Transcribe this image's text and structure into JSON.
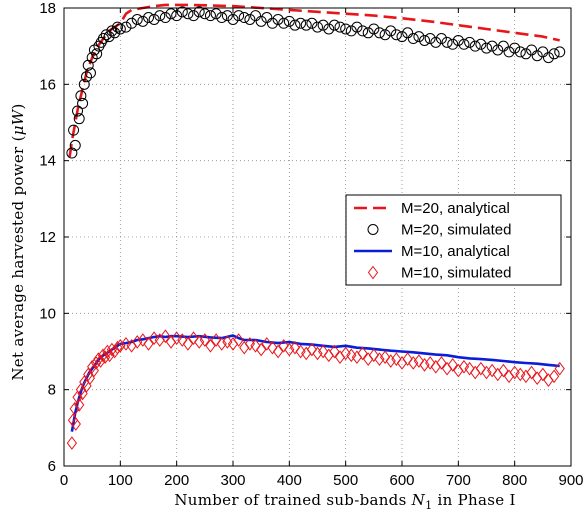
{
  "chart_data": {
    "type": "line",
    "xlabel": "Number of trained sub-bands N₁ in Phase I",
    "ylabel": "Net average harvested power (μW)",
    "xlim": [
      0,
      900
    ],
    "ylim": [
      6,
      18
    ],
    "xticks": [
      0,
      100,
      200,
      300,
      400,
      500,
      600,
      700,
      800,
      900
    ],
    "yticks": [
      6,
      8,
      10,
      12,
      14,
      16,
      18
    ],
    "grid": true,
    "legend_position": "center-right",
    "series": [
      {
        "name": "M=20, analytical",
        "style": "dashed",
        "color": "#e8161b",
        "points": [
          [
            10,
            14.1
          ],
          [
            15,
            14.6
          ],
          [
            20,
            15.0
          ],
          [
            25,
            15.4
          ],
          [
            30,
            15.7
          ],
          [
            35,
            16.0
          ],
          [
            40,
            16.3
          ],
          [
            45,
            16.5
          ],
          [
            50,
            16.7
          ],
          [
            55,
            16.85
          ],
          [
            60,
            17.0
          ],
          [
            65,
            17.1
          ],
          [
            70,
            17.2
          ],
          [
            75,
            17.3
          ],
          [
            80,
            17.4
          ],
          [
            85,
            17.45
          ],
          [
            90,
            17.5
          ],
          [
            95,
            17.55
          ],
          [
            100,
            17.6
          ],
          [
            110,
            17.85
          ],
          [
            120,
            17.95
          ],
          [
            140,
            18.0
          ],
          [
            160,
            18.05
          ],
          [
            180,
            18.08
          ],
          [
            200,
            18.08
          ],
          [
            220,
            18.08
          ],
          [
            250,
            18.07
          ],
          [
            300,
            18.05
          ],
          [
            350,
            18.0
          ],
          [
            400,
            17.95
          ],
          [
            450,
            17.9
          ],
          [
            500,
            17.85
          ],
          [
            550,
            17.8
          ],
          [
            600,
            17.73
          ],
          [
            650,
            17.65
          ],
          [
            700,
            17.55
          ],
          [
            750,
            17.45
          ],
          [
            800,
            17.35
          ],
          [
            850,
            17.25
          ],
          [
            880,
            17.15
          ]
        ]
      },
      {
        "name": "M=20, simulated",
        "style": "circle",
        "color": "#000000",
        "points": [
          [
            14,
            14.2
          ],
          [
            17,
            14.8
          ],
          [
            20,
            14.4
          ],
          [
            24,
            15.3
          ],
          [
            27,
            15.1
          ],
          [
            30,
            15.7
          ],
          [
            33,
            15.5
          ],
          [
            36,
            16.0
          ],
          [
            40,
            16.2
          ],
          [
            43,
            16.5
          ],
          [
            47,
            16.3
          ],
          [
            50,
            16.7
          ],
          [
            54,
            16.9
          ],
          [
            58,
            16.8
          ],
          [
            62,
            17.0
          ],
          [
            66,
            17.1
          ],
          [
            70,
            17.2
          ],
          [
            75,
            17.3
          ],
          [
            80,
            17.25
          ],
          [
            85,
            17.4
          ],
          [
            90,
            17.35
          ],
          [
            95,
            17.5
          ],
          [
            100,
            17.45
          ],
          [
            110,
            17.5
          ],
          [
            120,
            17.6
          ],
          [
            130,
            17.7
          ],
          [
            140,
            17.65
          ],
          [
            150,
            17.75
          ],
          [
            160,
            17.7
          ],
          [
            170,
            17.8
          ],
          [
            180,
            17.75
          ],
          [
            190,
            17.85
          ],
          [
            200,
            17.8
          ],
          [
            210,
            17.9
          ],
          [
            220,
            17.85
          ],
          [
            230,
            17.8
          ],
          [
            240,
            17.9
          ],
          [
            250,
            17.85
          ],
          [
            260,
            17.8
          ],
          [
            270,
            17.85
          ],
          [
            280,
            17.75
          ],
          [
            290,
            17.8
          ],
          [
            300,
            17.7
          ],
          [
            310,
            17.8
          ],
          [
            320,
            17.75
          ],
          [
            330,
            17.7
          ],
          [
            340,
            17.8
          ],
          [
            350,
            17.65
          ],
          [
            360,
            17.75
          ],
          [
            370,
            17.6
          ],
          [
            380,
            17.7
          ],
          [
            390,
            17.6
          ],
          [
            400,
            17.65
          ],
          [
            410,
            17.55
          ],
          [
            420,
            17.6
          ],
          [
            430,
            17.55
          ],
          [
            440,
            17.6
          ],
          [
            450,
            17.5
          ],
          [
            460,
            17.55
          ],
          [
            470,
            17.45
          ],
          [
            480,
            17.55
          ],
          [
            490,
            17.5
          ],
          [
            500,
            17.45
          ],
          [
            510,
            17.4
          ],
          [
            520,
            17.5
          ],
          [
            530,
            17.4
          ],
          [
            540,
            17.35
          ],
          [
            550,
            17.45
          ],
          [
            560,
            17.35
          ],
          [
            570,
            17.3
          ],
          [
            580,
            17.4
          ],
          [
            590,
            17.3
          ],
          [
            600,
            17.25
          ],
          [
            610,
            17.35
          ],
          [
            620,
            17.2
          ],
          [
            630,
            17.25
          ],
          [
            640,
            17.15
          ],
          [
            650,
            17.2
          ],
          [
            660,
            17.1
          ],
          [
            670,
            17.2
          ],
          [
            680,
            17.1
          ],
          [
            690,
            17.05
          ],
          [
            700,
            17.15
          ],
          [
            710,
            17.05
          ],
          [
            720,
            17.1
          ],
          [
            730,
            17.0
          ],
          [
            740,
            17.05
          ],
          [
            750,
            16.95
          ],
          [
            760,
            17.0
          ],
          [
            770,
            16.9
          ],
          [
            780,
            17.0
          ],
          [
            790,
            16.85
          ],
          [
            800,
            16.95
          ],
          [
            810,
            16.85
          ],
          [
            820,
            16.8
          ],
          [
            830,
            16.9
          ],
          [
            840,
            16.75
          ],
          [
            850,
            16.85
          ],
          [
            860,
            16.7
          ],
          [
            870,
            16.8
          ],
          [
            880,
            16.85
          ]
        ]
      },
      {
        "name": "M=10, analytical",
        "style": "solid",
        "color": "#0a1ed8",
        "points": [
          [
            14,
            6.9
          ],
          [
            20,
            7.4
          ],
          [
            25,
            7.7
          ],
          [
            30,
            7.95
          ],
          [
            35,
            8.15
          ],
          [
            40,
            8.3
          ],
          [
            45,
            8.45
          ],
          [
            50,
            8.55
          ],
          [
            55,
            8.65
          ],
          [
            60,
            8.75
          ],
          [
            65,
            8.85
          ],
          [
            70,
            8.9
          ],
          [
            75,
            8.95
          ],
          [
            80,
            9.0
          ],
          [
            85,
            9.05
          ],
          [
            90,
            9.1
          ],
          [
            95,
            9.15
          ],
          [
            100,
            9.2
          ],
          [
            110,
            9.22
          ],
          [
            120,
            9.25
          ],
          [
            130,
            9.3
          ],
          [
            140,
            9.32
          ],
          [
            150,
            9.35
          ],
          [
            160,
            9.38
          ],
          [
            170,
            9.4
          ],
          [
            180,
            9.38
          ],
          [
            190,
            9.4
          ],
          [
            200,
            9.4
          ],
          [
            220,
            9.38
          ],
          [
            240,
            9.4
          ],
          [
            260,
            9.37
          ],
          [
            280,
            9.35
          ],
          [
            300,
            9.42
          ],
          [
            310,
            9.35
          ],
          [
            320,
            9.3
          ],
          [
            340,
            9.3
          ],
          [
            360,
            9.25
          ],
          [
            380,
            9.22
          ],
          [
            400,
            9.25
          ],
          [
            420,
            9.2
          ],
          [
            440,
            9.18
          ],
          [
            460,
            9.15
          ],
          [
            480,
            9.12
          ],
          [
            500,
            9.15
          ],
          [
            520,
            9.1
          ],
          [
            540,
            9.08
          ],
          [
            560,
            9.05
          ],
          [
            580,
            9.02
          ],
          [
            600,
            9.0
          ],
          [
            620,
            8.98
          ],
          [
            640,
            8.95
          ],
          [
            660,
            8.92
          ],
          [
            680,
            8.9
          ],
          [
            700,
            8.85
          ],
          [
            720,
            8.82
          ],
          [
            740,
            8.8
          ],
          [
            760,
            8.78
          ],
          [
            780,
            8.75
          ],
          [
            800,
            8.72
          ],
          [
            820,
            8.7
          ],
          [
            840,
            8.68
          ],
          [
            860,
            8.65
          ],
          [
            880,
            8.62
          ]
        ]
      },
      {
        "name": "M=10, simulated",
        "style": "diamond",
        "color": "#e8161b",
        "points": [
          [
            14,
            6.6
          ],
          [
            16,
            7.2
          ],
          [
            19,
            7.5
          ],
          [
            21,
            7.1
          ],
          [
            24,
            7.8
          ],
          [
            27,
            7.6
          ],
          [
            30,
            8.0
          ],
          [
            33,
            7.9
          ],
          [
            36,
            8.2
          ],
          [
            40,
            8.1
          ],
          [
            43,
            8.4
          ],
          [
            46,
            8.3
          ],
          [
            50,
            8.6
          ],
          [
            53,
            8.5
          ],
          [
            57,
            8.7
          ],
          [
            61,
            8.8
          ],
          [
            65,
            8.75
          ],
          [
            69,
            8.9
          ],
          [
            73,
            8.85
          ],
          [
            77,
            9.0
          ],
          [
            81,
            8.9
          ],
          [
            85,
            9.05
          ],
          [
            90,
            9.0
          ],
          [
            95,
            9.1
          ],
          [
            100,
            9.15
          ],
          [
            110,
            9.2
          ],
          [
            120,
            9.15
          ],
          [
            130,
            9.25
          ],
          [
            140,
            9.3
          ],
          [
            150,
            9.2
          ],
          [
            160,
            9.35
          ],
          [
            170,
            9.3
          ],
          [
            180,
            9.4
          ],
          [
            190,
            9.25
          ],
          [
            200,
            9.35
          ],
          [
            210,
            9.3
          ],
          [
            220,
            9.2
          ],
          [
            230,
            9.35
          ],
          [
            240,
            9.25
          ],
          [
            250,
            9.3
          ],
          [
            260,
            9.15
          ],
          [
            270,
            9.3
          ],
          [
            280,
            9.2
          ],
          [
            290,
            9.25
          ],
          [
            300,
            9.2
          ],
          [
            310,
            9.3
          ],
          [
            320,
            9.1
          ],
          [
            330,
            9.2
          ],
          [
            340,
            9.15
          ],
          [
            350,
            9.05
          ],
          [
            360,
            9.2
          ],
          [
            370,
            9.1
          ],
          [
            380,
            9.0
          ],
          [
            390,
            9.15
          ],
          [
            400,
            9.05
          ],
          [
            410,
            9.1
          ],
          [
            420,
            9.0
          ],
          [
            430,
            8.95
          ],
          [
            440,
            9.05
          ],
          [
            450,
            8.95
          ],
          [
            460,
            9.0
          ],
          [
            470,
            8.9
          ],
          [
            480,
            9.0
          ],
          [
            490,
            8.85
          ],
          [
            500,
            8.95
          ],
          [
            510,
            8.9
          ],
          [
            520,
            8.85
          ],
          [
            530,
            8.95
          ],
          [
            540,
            8.8
          ],
          [
            550,
            8.9
          ],
          [
            560,
            8.8
          ],
          [
            570,
            8.85
          ],
          [
            580,
            8.75
          ],
          [
            590,
            8.8
          ],
          [
            600,
            8.7
          ],
          [
            610,
            8.8
          ],
          [
            620,
            8.7
          ],
          [
            630,
            8.75
          ],
          [
            640,
            8.65
          ],
          [
            650,
            8.7
          ],
          [
            660,
            8.6
          ],
          [
            670,
            8.7
          ],
          [
            680,
            8.55
          ],
          [
            690,
            8.65
          ],
          [
            700,
            8.5
          ],
          [
            710,
            8.6
          ],
          [
            720,
            8.55
          ],
          [
            730,
            8.45
          ],
          [
            740,
            8.55
          ],
          [
            750,
            8.45
          ],
          [
            760,
            8.5
          ],
          [
            770,
            8.4
          ],
          [
            780,
            8.5
          ],
          [
            790,
            8.35
          ],
          [
            800,
            8.45
          ],
          [
            810,
            8.4
          ],
          [
            820,
            8.35
          ],
          [
            830,
            8.45
          ],
          [
            840,
            8.3
          ],
          [
            850,
            8.4
          ],
          [
            860,
            8.25
          ],
          [
            870,
            8.35
          ],
          [
            880,
            8.55
          ]
        ]
      }
    ]
  }
}
